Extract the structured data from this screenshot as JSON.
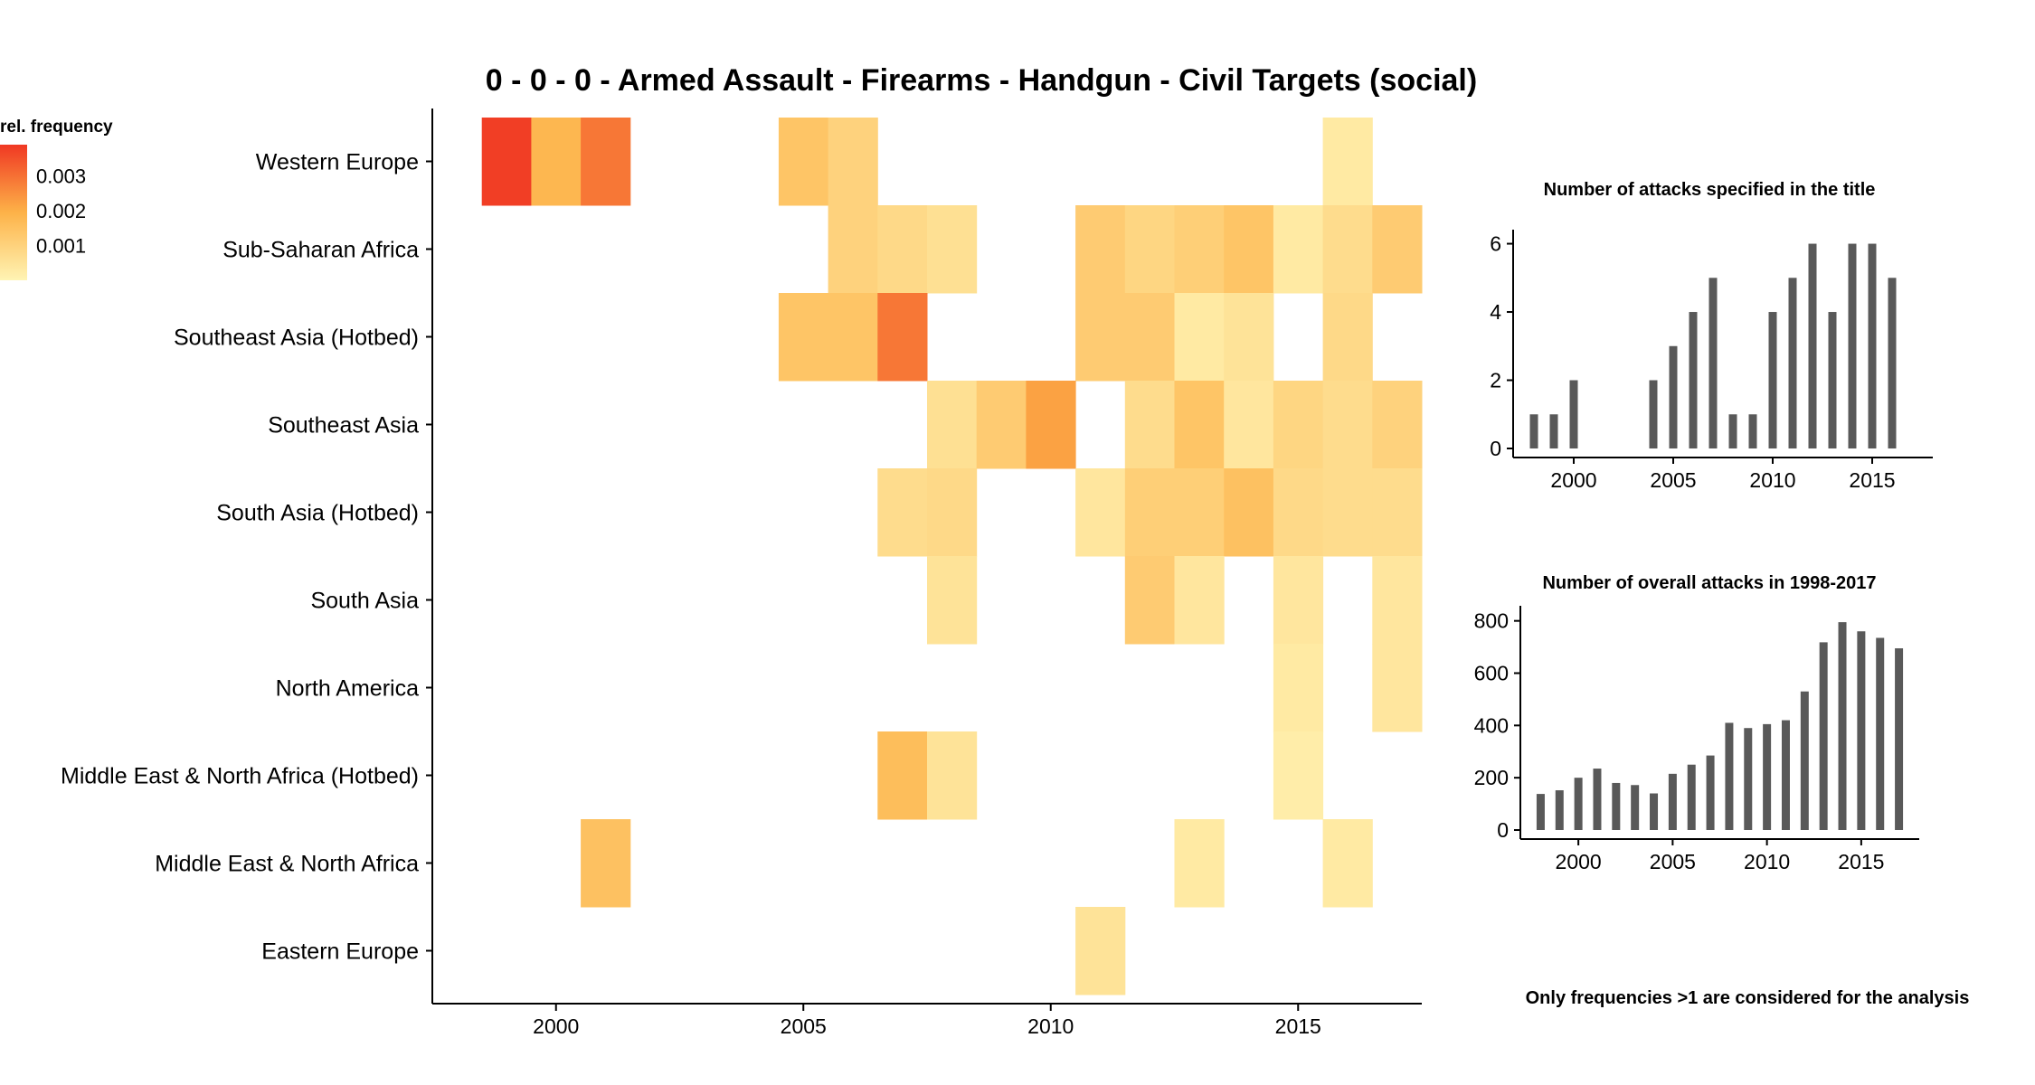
{
  "chart_data": [
    {
      "type": "heatmap",
      "title": "0 - 0 - 0 - Armed Assault - Firearms - Handgun - Civil Targets (social)",
      "xlabel": "",
      "ylabel": "",
      "legend": {
        "title": "rel. frequency",
        "ticks": [
          "0.003",
          "0.002",
          "0.001"
        ],
        "placement": "top-left"
      },
      "x_ticks": [
        "2000",
        "2005",
        "2010",
        "2015"
      ],
      "xlim": [
        1997.5,
        2017.5
      ],
      "rows": [
        "Western Europe",
        "Sub-Saharan Africa",
        "Southeast Asia (Hotbed)",
        "Southeast Asia",
        "South Asia (Hotbed)",
        "South Asia",
        "North America",
        "Middle East & North Africa (Hotbed)",
        "Middle East & North Africa",
        "Eastern Europe"
      ],
      "cells": [
        {
          "row": "Western Europe",
          "year": 1999,
          "value": 0.0038
        },
        {
          "row": "Western Europe",
          "year": 2000,
          "value": 0.0018
        },
        {
          "row": "Western Europe",
          "year": 2001,
          "value": 0.0029
        },
        {
          "row": "Western Europe",
          "year": 2005,
          "value": 0.0014
        },
        {
          "row": "Western Europe",
          "year": 2006,
          "value": 0.001
        },
        {
          "row": "Western Europe",
          "year": 2016,
          "value": 0.0003
        },
        {
          "row": "Sub-Saharan Africa",
          "year": 2006,
          "value": 0.001
        },
        {
          "row": "Sub-Saharan Africa",
          "year": 2007,
          "value": 0.0008
        },
        {
          "row": "Sub-Saharan Africa",
          "year": 2008,
          "value": 0.0006
        },
        {
          "row": "Sub-Saharan Africa",
          "year": 2011,
          "value": 0.0012
        },
        {
          "row": "Sub-Saharan Africa",
          "year": 2012,
          "value": 0.0009
        },
        {
          "row": "Sub-Saharan Africa",
          "year": 2013,
          "value": 0.0011
        },
        {
          "row": "Sub-Saharan Africa",
          "year": 2014,
          "value": 0.0014
        },
        {
          "row": "Sub-Saharan Africa",
          "year": 2015,
          "value": 0.0003
        },
        {
          "row": "Sub-Saharan Africa",
          "year": 2016,
          "value": 0.0007
        },
        {
          "row": "Sub-Saharan Africa",
          "year": 2017,
          "value": 0.0012
        },
        {
          "row": "Southeast Asia (Hotbed)",
          "year": 2005,
          "value": 0.0014
        },
        {
          "row": "Southeast Asia (Hotbed)",
          "year": 2006,
          "value": 0.0014
        },
        {
          "row": "Southeast Asia (Hotbed)",
          "year": 2007,
          "value": 0.0029
        },
        {
          "row": "Southeast Asia (Hotbed)",
          "year": 2011,
          "value": 0.0012
        },
        {
          "row": "Southeast Asia (Hotbed)",
          "year": 2012,
          "value": 0.0012
        },
        {
          "row": "Southeast Asia (Hotbed)",
          "year": 2013,
          "value": 0.0003
        },
        {
          "row": "Southeast Asia (Hotbed)",
          "year": 2014,
          "value": 0.0005
        },
        {
          "row": "Southeast Asia (Hotbed)",
          "year": 2016,
          "value": 0.0008
        },
        {
          "row": "Southeast Asia",
          "year": 2008,
          "value": 0.0006
        },
        {
          "row": "Southeast Asia",
          "year": 2009,
          "value": 0.0012
        },
        {
          "row": "Southeast Asia",
          "year": 2010,
          "value": 0.0022
        },
        {
          "row": "Southeast Asia",
          "year": 2012,
          "value": 0.0007
        },
        {
          "row": "Southeast Asia",
          "year": 2013,
          "value": 0.0014
        },
        {
          "row": "Southeast Asia",
          "year": 2014,
          "value": 0.0004
        },
        {
          "row": "Southeast Asia",
          "year": 2015,
          "value": 0.0009
        },
        {
          "row": "Southeast Asia",
          "year": 2016,
          "value": 0.0007
        },
        {
          "row": "Southeast Asia",
          "year": 2017,
          "value": 0.001
        },
        {
          "row": "South Asia (Hotbed)",
          "year": 2007,
          "value": 0.0007
        },
        {
          "row": "South Asia (Hotbed)",
          "year": 2008,
          "value": 0.0008
        },
        {
          "row": "South Asia (Hotbed)",
          "year": 2011,
          "value": 0.0004
        },
        {
          "row": "South Asia (Hotbed)",
          "year": 2012,
          "value": 0.0011
        },
        {
          "row": "South Asia (Hotbed)",
          "year": 2013,
          "value": 0.0011
        },
        {
          "row": "South Asia (Hotbed)",
          "year": 2014,
          "value": 0.0015
        },
        {
          "row": "South Asia (Hotbed)",
          "year": 2015,
          "value": 0.0008
        },
        {
          "row": "South Asia (Hotbed)",
          "year": 2016,
          "value": 0.0007
        },
        {
          "row": "South Asia (Hotbed)",
          "year": 2017,
          "value": 0.0007
        },
        {
          "row": "South Asia",
          "year": 2008,
          "value": 0.0005
        },
        {
          "row": "South Asia",
          "year": 2012,
          "value": 0.0012
        },
        {
          "row": "South Asia",
          "year": 2013,
          "value": 0.0004
        },
        {
          "row": "South Asia",
          "year": 2015,
          "value": 0.0004
        },
        {
          "row": "South Asia",
          "year": 2017,
          "value": 0.0004
        },
        {
          "row": "North America",
          "year": 2015,
          "value": 0.0003
        },
        {
          "row": "North America",
          "year": 2017,
          "value": 0.0004
        },
        {
          "row": "Middle East & North Africa (Hotbed)",
          "year": 2007,
          "value": 0.0016
        },
        {
          "row": "Middle East & North Africa (Hotbed)",
          "year": 2008,
          "value": 0.0005
        },
        {
          "row": "Middle East & North Africa (Hotbed)",
          "year": 2015,
          "value": 0.0002
        },
        {
          "row": "Middle East & North Africa",
          "year": 2001,
          "value": 0.0015
        },
        {
          "row": "Middle East & North Africa",
          "year": 2013,
          "value": 0.0003
        },
        {
          "row": "Middle East & North Africa",
          "year": 2016,
          "value": 0.0003
        },
        {
          "row": "Eastern Europe",
          "year": 2011,
          "value": 0.0005
        }
      ],
      "colors": {
        "low": "#fff4b4",
        "mid": "#fdb248",
        "high": "#f03823"
      },
      "vmin": 0.0,
      "vmax": 0.0039,
      "grid": false
    },
    {
      "type": "bar",
      "title": "Number of attacks specified in the title",
      "xlabel": "",
      "ylabel": "",
      "x_ticks": [
        "2000",
        "2005",
        "2010",
        "2015"
      ],
      "y_ticks": [
        "0",
        "2",
        "4",
        "6"
      ],
      "xlim": [
        1997.5,
        2017.5
      ],
      "ylim": [
        0,
        6.2
      ],
      "x": [
        1998,
        1999,
        2000,
        2004,
        2005,
        2006,
        2007,
        2008,
        2009,
        2010,
        2011,
        2012,
        2013,
        2014,
        2015,
        2016,
        2017
      ],
      "values": [
        1,
        1,
        2,
        2,
        3,
        4,
        5,
        1,
        1,
        4,
        5,
        6,
        4,
        6,
        6,
        5,
        0
      ],
      "color": "#595959",
      "grid": false
    },
    {
      "type": "bar",
      "title": "Number of overall attacks in 1998-2017",
      "xlabel": "",
      "ylabel": "",
      "x_ticks": [
        "2000",
        "2005",
        "2010",
        "2015"
      ],
      "y_ticks": [
        "0",
        "200",
        "400",
        "600",
        "800"
      ],
      "xlim": [
        1997.5,
        2017.5
      ],
      "ylim": [
        0,
        830
      ],
      "x": [
        1998,
        1999,
        2000,
        2001,
        2002,
        2003,
        2004,
        2005,
        2006,
        2007,
        2008,
        2009,
        2010,
        2011,
        2012,
        2013,
        2014,
        2015,
        2016,
        2017
      ],
      "values": [
        138,
        152,
        200,
        235,
        180,
        172,
        140,
        215,
        250,
        285,
        410,
        390,
        405,
        420,
        530,
        718,
        795,
        760,
        735,
        695
      ],
      "color": "#595959",
      "grid": false
    }
  ],
  "footnote": "Only frequencies >1 are considered for the analysis"
}
